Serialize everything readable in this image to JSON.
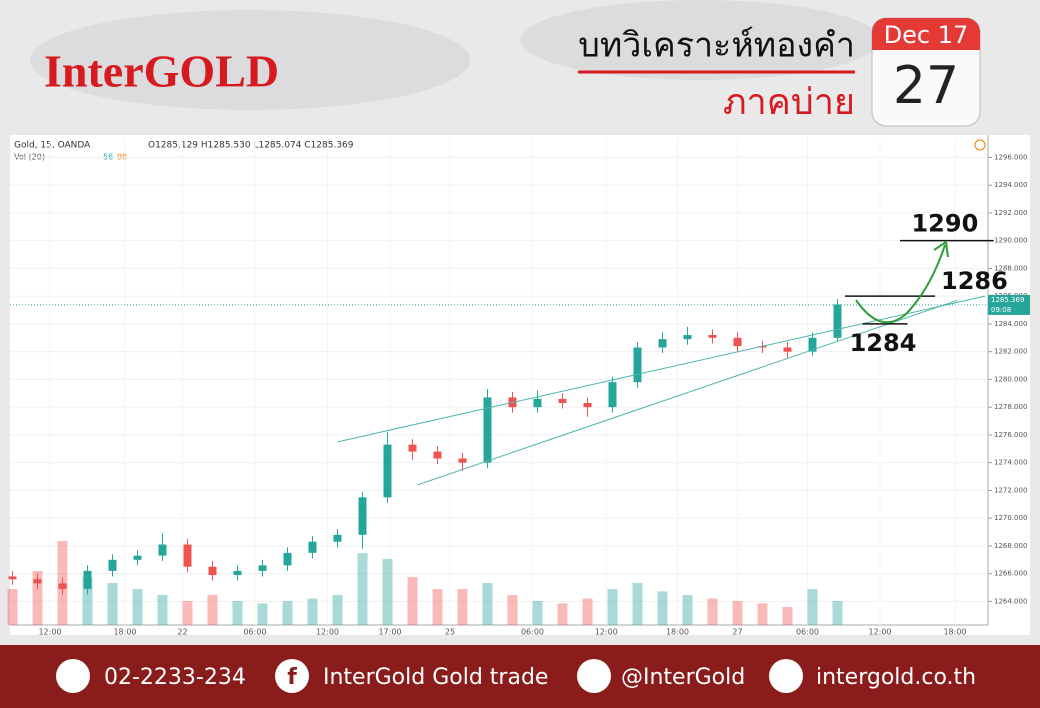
{
  "header": {
    "brand": "InterGOLD",
    "title": "บทวิเคราะห์ทองคำ",
    "subtitle": "ภาคบ่าย",
    "calendar_month": "Dec 17",
    "calendar_day": "27"
  },
  "chart_data": {
    "type": "candlestick",
    "symbol": "Gold, 15, OANDA",
    "ohlc_text": "O1285.129 H1285.530 L1285.074 C1285.369",
    "volume_title": "Vol (20)",
    "volume_readings": [
      56,
      98
    ],
    "x": [
      -3,
      -1,
      1,
      3,
      5,
      7,
      9,
      11,
      13,
      15,
      17,
      19,
      21,
      23,
      25,
      27,
      29,
      31,
      33,
      35,
      37,
      39,
      41,
      43,
      45,
      47,
      49,
      51,
      53,
      55,
      57,
      59,
      61,
      63
    ],
    "open": [
      1265.8,
      1265.6,
      1265.3,
      1264.9,
      1266.2,
      1267.0,
      1267.3,
      1268.1,
      1266.5,
      1265.9,
      1266.2,
      1266.6,
      1267.5,
      1268.3,
      1268.8,
      1271.5,
      1275.3,
      1274.8,
      1274.3,
      1274.0,
      1278.7,
      1278.0,
      1278.6,
      1278.3,
      1278.0,
      1279.8,
      1282.3,
      1282.9,
      1283.2,
      1283.0,
      1282.4,
      1282.3,
      1282.0,
      1283.0
    ],
    "high": [
      1266.2,
      1266.0,
      1265.7,
      1266.6,
      1267.4,
      1267.7,
      1268.9,
      1268.5,
      1266.9,
      1266.6,
      1267.0,
      1267.9,
      1268.7,
      1269.2,
      1271.9,
      1276.2,
      1275.7,
      1275.2,
      1274.7,
      1279.3,
      1279.1,
      1279.2,
      1279.0,
      1278.7,
      1280.2,
      1282.7,
      1283.4,
      1283.8,
      1283.6,
      1283.4,
      1282.8,
      1282.7,
      1283.4,
      1285.8
    ],
    "low": [
      1265.2,
      1264.9,
      1264.5,
      1264.5,
      1265.8,
      1266.6,
      1266.9,
      1266.1,
      1265.5,
      1265.5,
      1265.8,
      1266.2,
      1267.1,
      1267.9,
      1267.8,
      1271.1,
      1274.2,
      1273.9,
      1273.4,
      1273.6,
      1277.6,
      1277.6,
      1277.9,
      1277.3,
      1277.6,
      1279.4,
      1281.9,
      1282.5,
      1282.6,
      1282.0,
      1281.9,
      1281.5,
      1281.7,
      1282.8
    ],
    "close": [
      1265.6,
      1265.3,
      1264.9,
      1266.2,
      1267.0,
      1267.3,
      1268.1,
      1266.5,
      1265.9,
      1266.2,
      1266.6,
      1267.5,
      1268.3,
      1268.8,
      1271.5,
      1275.3,
      1274.8,
      1274.3,
      1274.0,
      1278.7,
      1278.0,
      1278.6,
      1278.3,
      1278.0,
      1279.8,
      1282.3,
      1282.9,
      1283.2,
      1283.0,
      1282.4,
      1282.3,
      1282.0,
      1283.0,
      1285.4
    ],
    "volume": [
      30,
      45,
      70,
      40,
      35,
      30,
      25,
      20,
      25,
      20,
      18,
      20,
      22,
      25,
      60,
      55,
      40,
      30,
      30,
      35,
      25,
      20,
      18,
      22,
      30,
      35,
      28,
      25,
      22,
      20,
      18,
      15,
      30,
      20
    ],
    "vlim": [
      0,
      100
    ],
    "up_color": "#26a69a",
    "down_color": "#ef5350",
    "xlim": [
      -3.2,
      74.8
    ],
    "xticks": [
      {
        "value": 0,
        "label": "12:00"
      },
      {
        "value": 6,
        "label": "18:00"
      },
      {
        "value": 10.6,
        "label": "22"
      },
      {
        "value": 16.4,
        "label": "06:00"
      },
      {
        "value": 22.2,
        "label": "12:00"
      },
      {
        "value": 27.2,
        "label": "17:00"
      },
      {
        "value": 32,
        "label": "25"
      },
      {
        "value": 38.6,
        "label": "06:00"
      },
      {
        "value": 44.5,
        "label": "12:00"
      },
      {
        "value": 50.2,
        "label": "18:00"
      },
      {
        "value": 55,
        "label": "27"
      },
      {
        "value": 60.6,
        "label": "06:00"
      },
      {
        "value": 66.4,
        "label": "12:00"
      },
      {
        "value": 72.4,
        "label": "18:00"
      }
    ],
    "ylim": [
      1262.3,
      1297.4
    ],
    "yticks": [
      {
        "value": 1264,
        "label": "1264.000"
      },
      {
        "value": 1266,
        "label": "1266.000"
      },
      {
        "value": 1268,
        "label": "1268.000"
      },
      {
        "value": 1270,
        "label": "1270.000"
      },
      {
        "value": 1272,
        "label": "1272.000"
      },
      {
        "value": 1274,
        "label": "1274.000"
      },
      {
        "value": 1276,
        "label": "1276.000"
      },
      {
        "value": 1278,
        "label": "1278.000"
      },
      {
        "value": 1280,
        "label": "1280.000"
      },
      {
        "value": 1282,
        "label": "1282.000"
      },
      {
        "value": 1284,
        "label": "1284.000"
      },
      {
        "value": 1286,
        "label": "1286.000"
      },
      {
        "value": 1288,
        "label": "1288.000"
      },
      {
        "value": 1290,
        "label": "1290.000"
      },
      {
        "value": 1292,
        "label": "1292.000"
      },
      {
        "value": 1294,
        "label": "1294.000"
      },
      {
        "value": 1296,
        "label": "1296.000"
      }
    ],
    "last_price": 1285.369,
    "countdown": "09:08",
    "channels": [
      {
        "x": [
          23,
          74.8
        ],
        "y": [
          1275.5,
          1286
        ]
      },
      {
        "x": [
          29.4,
          72.6
        ],
        "y": [
          1272.4,
          1285.7
        ]
      }
    ],
    "levels": [
      {
        "value": 1290,
        "x": [
          68,
          75.5
        ]
      },
      {
        "value": 1286,
        "x": [
          63.6,
          70.8
        ]
      },
      {
        "value": 1284,
        "x": [
          65,
          68.6
        ]
      }
    ]
  },
  "footer": {
    "phone": "02-2233-234",
    "facebook": "InterGold Gold trade",
    "line": "@InterGold",
    "website": "intergold.co.th"
  }
}
